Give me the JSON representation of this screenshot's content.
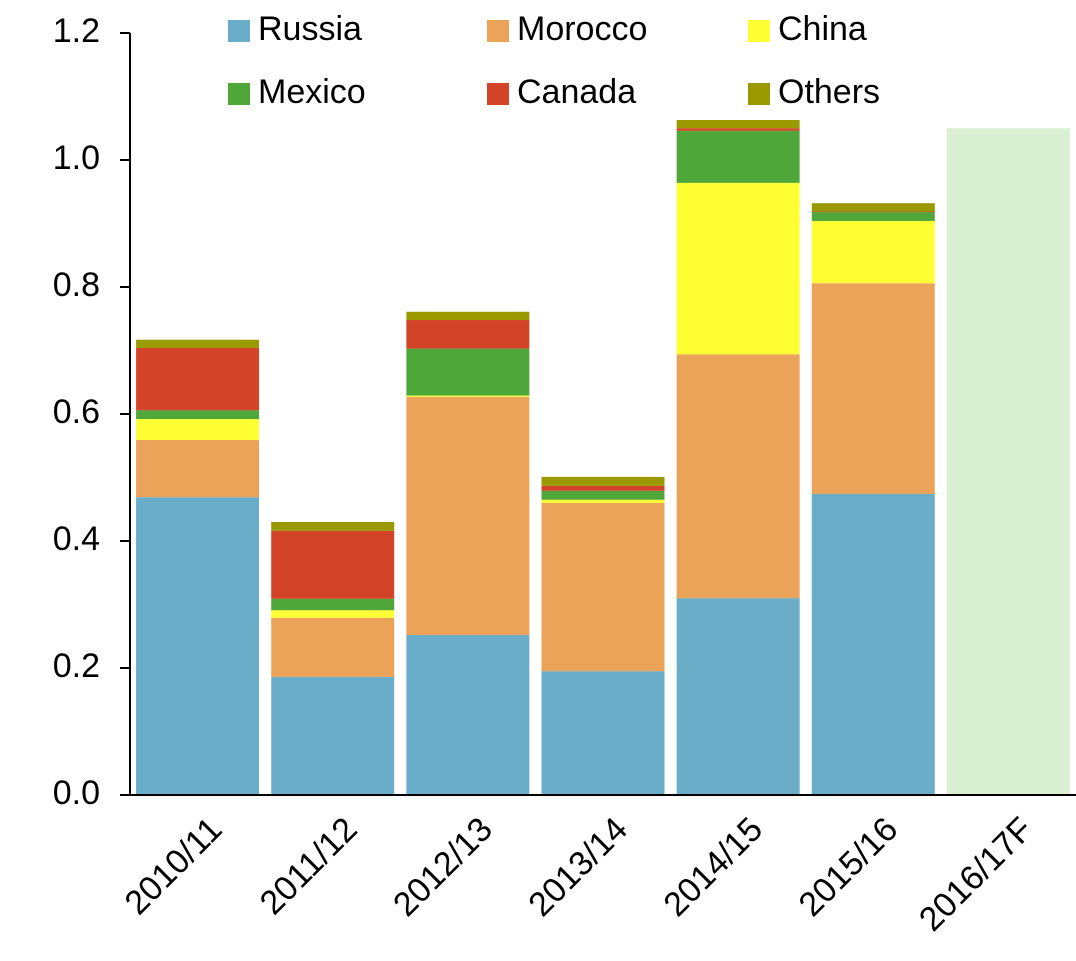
{
  "chart_data": {
    "type": "stacked_bar",
    "categories": [
      "2010/11",
      "2011/12",
      "2012/13",
      "2013/14",
      "2014/15",
      "2015/16",
      "2016/17F"
    ],
    "series": [
      {
        "name": "Russia",
        "color": "#6aadc8",
        "values": [
          0.469,
          0.186,
          0.252,
          0.195,
          0.31,
          0.474,
          null
        ]
      },
      {
        "name": "Morocco",
        "color": "#eba35a",
        "values": [
          0.09,
          0.093,
          0.375,
          0.265,
          0.384,
          0.332,
          null
        ]
      },
      {
        "name": "China",
        "color": "#ffff33",
        "values": [
          0.033,
          0.012,
          0.002,
          0.005,
          0.27,
          0.098,
          null
        ]
      },
      {
        "name": "Mexico",
        "color": "#4ea738",
        "values": [
          0.014,
          0.018,
          0.074,
          0.014,
          0.082,
          0.014,
          null
        ]
      },
      {
        "name": "Canada",
        "color": "#d24327",
        "values": [
          0.098,
          0.107,
          0.045,
          0.008,
          0.004,
          0.001,
          null
        ]
      },
      {
        "name": "Others",
        "color": "#9a9a00",
        "values": [
          0.013,
          0.014,
          0.013,
          0.014,
          0.013,
          0.013,
          null
        ]
      }
    ],
    "forecast": {
      "color": "#d9f0d3",
      "values": [
        null,
        null,
        null,
        null,
        null,
        null,
        1.05
      ]
    },
    "ylim": [
      0,
      1.2
    ],
    "yticks": [
      {
        "value": 0,
        "label": "0.0"
      },
      0.2,
      0.4,
      0.6,
      0.8,
      {
        "value": 1,
        "label": "1.0"
      },
      1.2
    ],
    "grid": false,
    "legend": "top"
  }
}
